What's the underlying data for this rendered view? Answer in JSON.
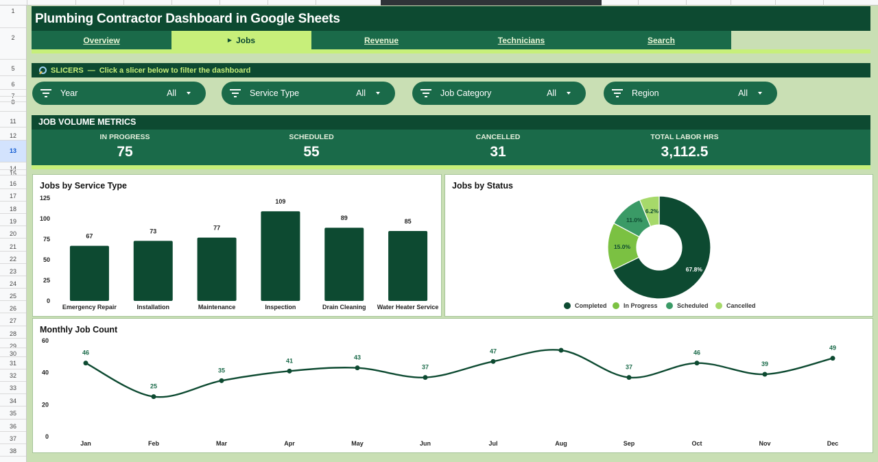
{
  "sheet": {
    "row_numbers": [
      "1",
      "2",
      "5",
      "6",
      "7",
      "8",
      "11",
      "12",
      "13",
      "14",
      "15",
      "16",
      "17",
      "18",
      "19",
      "20",
      "21",
      "22",
      "23",
      "24",
      "25",
      "26",
      "27",
      "28",
      "29",
      "30",
      "31",
      "32",
      "33",
      "34",
      "35",
      "36",
      "37",
      "38"
    ],
    "selected_row": "13"
  },
  "header": {
    "title": "Plumbing Contractor Dashboard in Google Sheets"
  },
  "tabs": [
    {
      "label": "Overview",
      "active": false
    },
    {
      "label": "Jobs",
      "active": true
    },
    {
      "label": "Revenue",
      "active": false
    },
    {
      "label": "Technicians",
      "active": false
    },
    {
      "label": "Search",
      "active": false
    }
  ],
  "slicers_bar": {
    "label": "SLICERS",
    "dash": "—",
    "hint": "Click a slicer below to filter the dashboard",
    "icon": "magnifier-icon"
  },
  "slicers": [
    {
      "label": "Year",
      "value": "All"
    },
    {
      "label": "Service Type",
      "value": "All"
    },
    {
      "label": "Job Category",
      "value": "All"
    },
    {
      "label": "Region",
      "value": "All"
    }
  ],
  "metrics": {
    "title": "JOB VOLUME METRICS",
    "items": [
      {
        "label": "IN PROGRESS",
        "value": "75"
      },
      {
        "label": "SCHEDULED",
        "value": "55"
      },
      {
        "label": "CANCELLED",
        "value": "31"
      },
      {
        "label": "TOTAL LABOR HRS",
        "value": "3,112.5"
      }
    ]
  },
  "colors": {
    "dark_green": "#0d4a31",
    "mid_green": "#1a6a49",
    "lime": "#c7ef7a",
    "page_bg": "#c9dfb4"
  },
  "chart_data": [
    {
      "type": "bar",
      "title": "Jobs by Service Type",
      "categories": [
        "Emergency Repair",
        "Installation",
        "Maintenance",
        "Inspection",
        "Drain Cleaning",
        "Water Heater Service"
      ],
      "values": [
        67,
        73,
        77,
        109,
        89,
        85
      ],
      "ylim": [
        0,
        125
      ],
      "yticks": [
        0,
        25,
        50,
        75,
        100,
        125
      ],
      "color": "#0d4a31",
      "data_labels": true
    },
    {
      "type": "pie",
      "donut": true,
      "title": "Jobs by Status",
      "labels": [
        "Completed",
        "In Progress",
        "Scheduled",
        "Cancelled"
      ],
      "values": [
        67.8,
        15.0,
        11.0,
        6.2
      ],
      "value_labels": [
        "67.8%",
        "15.0%",
        "11.0%",
        "6.2%"
      ],
      "colors": [
        "#0d4a31",
        "#7bc142",
        "#3a9a66",
        "#a6d96a"
      ],
      "legend": "bottom"
    },
    {
      "type": "line",
      "title": "Monthly Job Count",
      "categories": [
        "Jan",
        "Feb",
        "Mar",
        "Apr",
        "May",
        "Jun",
        "Jul",
        "Aug",
        "Sep",
        "Oct",
        "Nov",
        "Dec"
      ],
      "values": [
        46,
        25,
        35,
        41,
        43,
        37,
        47,
        54,
        37,
        46,
        39,
        49
      ],
      "value_labels": [
        "46",
        "25",
        "35",
        "41",
        "43",
        "37",
        "47",
        "",
        "37",
        "46",
        "39",
        "49"
      ],
      "ylim": [
        0,
        60
      ],
      "yticks": [
        0,
        20,
        40,
        60
      ],
      "smooth": true,
      "color": "#0d4a31"
    }
  ]
}
